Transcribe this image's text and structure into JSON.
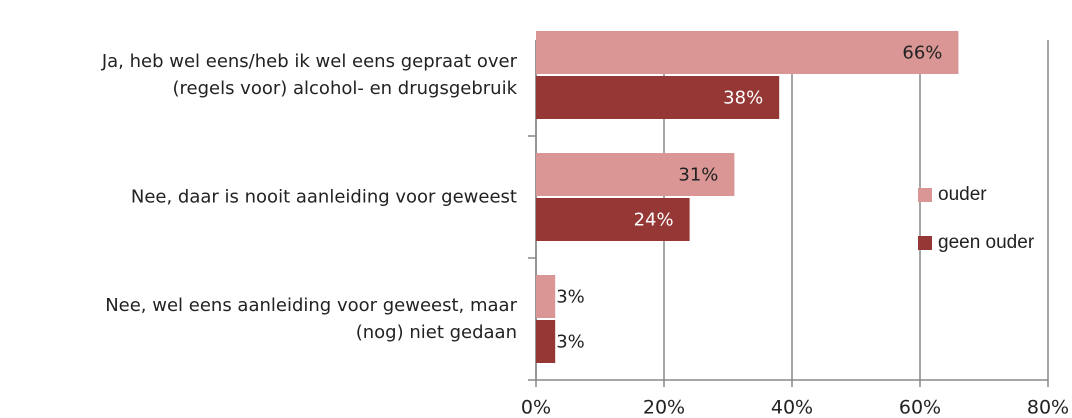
{
  "chart_data": {
    "type": "hbar",
    "categories": [
      "Ja, heb wel eens/heb ik wel eens gepraat over\n(regels voor) alcohol- en drugsgebruik",
      "Nee, daar is nooit aanleiding voor geweest",
      "Nee, wel eens aanleiding voor geweest, maar\n(nog) niet gedaan"
    ],
    "series": [
      {
        "name": "ouder",
        "color": "#d99694",
        "values": [
          66,
          31,
          3
        ],
        "value_labels": [
          "66%",
          "31%",
          "3%"
        ]
      },
      {
        "name": "geen ouder",
        "color": "#953735",
        "values": [
          38,
          24,
          3
        ],
        "value_labels": [
          "38%",
          "24%",
          "3%"
        ]
      }
    ],
    "xlim": [
      0,
      80
    ],
    "xticks": [
      {
        "value": 0,
        "label": "0%"
      },
      {
        "value": 20,
        "label": "20%"
      },
      {
        "value": 40,
        "label": "40%"
      },
      {
        "value": 60,
        "label": "60%"
      },
      {
        "value": 80,
        "label": "80%"
      }
    ],
    "grid": true,
    "legend": "right"
  }
}
